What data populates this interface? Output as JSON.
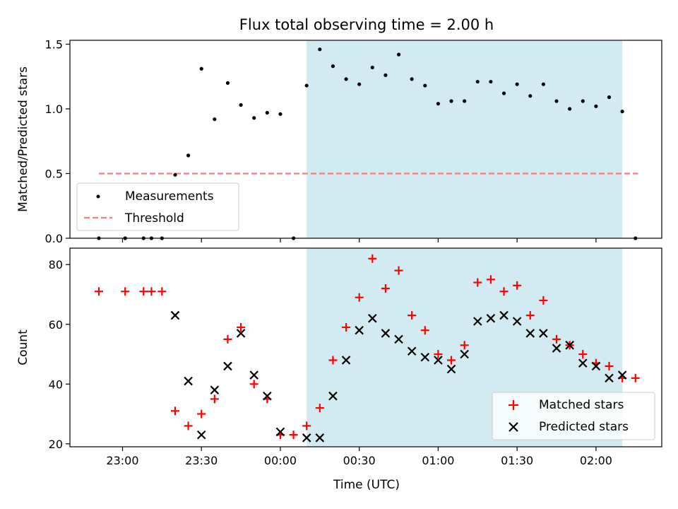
{
  "chart_data": {
    "type": "scatter",
    "title": "Flux total observing time = 2.00 h",
    "xlabel": "Time (UTC)",
    "x_tick_labels": [
      "23:00",
      "23:30",
      "00:00",
      "00:30",
      "01:00",
      "01:30",
      "02:00"
    ],
    "x_tick_minutes": [
      0,
      30,
      60,
      90,
      120,
      150,
      180
    ],
    "xlim_minutes": [
      -20,
      205
    ],
    "x_axis_origin": "23:00",
    "highlight_span_minutes": [
      70,
      190
    ],
    "highlight_color": "#add8e6",
    "top": {
      "ylabel": "Matched/Predicted stars",
      "ylim": [
        0,
        1.53
      ],
      "y_ticks": [
        "0.0",
        "0.5",
        "1.0",
        "1.5"
      ],
      "y_tick_values": [
        0,
        0.5,
        1.0,
        1.5
      ],
      "legend": {
        "placement": "lower-left",
        "measurements_label": "Measurements",
        "threshold_label": "Threshold"
      },
      "threshold": {
        "value": 0.5,
        "x_range_minutes": [
          -9,
          196
        ],
        "color": "#f08080"
      },
      "measurements": [
        [
          -9,
          0.0
        ],
        [
          1,
          0.0
        ],
        [
          8,
          0.0
        ],
        [
          11,
          0.0
        ],
        [
          15,
          0.0
        ],
        [
          20,
          0.49
        ],
        [
          25,
          0.64
        ],
        [
          30,
          1.31
        ],
        [
          35,
          0.92
        ],
        [
          40,
          1.2
        ],
        [
          45,
          1.03
        ],
        [
          50,
          0.93
        ],
        [
          55,
          0.97
        ],
        [
          60,
          0.96
        ],
        [
          65,
          0.0
        ],
        [
          70,
          1.18
        ],
        [
          75,
          1.46
        ],
        [
          80,
          1.33
        ],
        [
          85,
          1.23
        ],
        [
          90,
          1.19
        ],
        [
          95,
          1.32
        ],
        [
          100,
          1.26
        ],
        [
          105,
          1.42
        ],
        [
          110,
          1.23
        ],
        [
          115,
          1.18
        ],
        [
          120,
          1.04
        ],
        [
          125,
          1.06
        ],
        [
          130,
          1.06
        ],
        [
          135,
          1.21
        ],
        [
          140,
          1.21
        ],
        [
          145,
          1.12
        ],
        [
          150,
          1.19
        ],
        [
          155,
          1.1
        ],
        [
          160,
          1.19
        ],
        [
          165,
          1.06
        ],
        [
          170,
          1.0
        ],
        [
          175,
          1.06
        ],
        [
          180,
          1.02
        ],
        [
          185,
          1.09
        ],
        [
          190,
          0.98
        ],
        [
          195,
          0.0
        ]
      ],
      "measurement_color": "#000000"
    },
    "bottom": {
      "ylabel": "Count",
      "ylim": [
        19,
        85.5
      ],
      "y_ticks": [
        "20",
        "40",
        "60",
        "80"
      ],
      "y_tick_values": [
        20,
        40,
        60,
        80
      ],
      "legend": {
        "placement": "lower-right"
      },
      "series": [
        {
          "name": "Matched stars",
          "marker": "+",
          "color": "#ff0000",
          "points": [
            [
              -9,
              71
            ],
            [
              1,
              71
            ],
            [
              8,
              71
            ],
            [
              11,
              71
            ],
            [
              15,
              71
            ],
            [
              20,
              31
            ],
            [
              25,
              26
            ],
            [
              30,
              30
            ],
            [
              35,
              35
            ],
            [
              40,
              55
            ],
            [
              45,
              59
            ],
            [
              50,
              40
            ],
            [
              55,
              35
            ],
            [
              60,
              23
            ],
            [
              65,
              23
            ],
            [
              70,
              26
            ],
            [
              75,
              32
            ],
            [
              80,
              48
            ],
            [
              85,
              59
            ],
            [
              90,
              69
            ],
            [
              95,
              82
            ],
            [
              100,
              72
            ],
            [
              105,
              78
            ],
            [
              110,
              63
            ],
            [
              115,
              58
            ],
            [
              120,
              50
            ],
            [
              125,
              48
            ],
            [
              130,
              53
            ],
            [
              135,
              74
            ],
            [
              140,
              75
            ],
            [
              145,
              71
            ],
            [
              150,
              73
            ],
            [
              155,
              63
            ],
            [
              160,
              68
            ],
            [
              165,
              55
            ],
            [
              170,
              53
            ],
            [
              175,
              50
            ],
            [
              180,
              47
            ],
            [
              185,
              46
            ],
            [
              190,
              42
            ],
            [
              195,
              42
            ]
          ]
        },
        {
          "name": "Predicted stars",
          "marker": "x",
          "color": "#000000",
          "points": [
            [
              20,
              63
            ],
            [
              25,
              41
            ],
            [
              30,
              23
            ],
            [
              35,
              38
            ],
            [
              40,
              46
            ],
            [
              45,
              57
            ],
            [
              50,
              43
            ],
            [
              55,
              36
            ],
            [
              60,
              24
            ],
            [
              70,
              22
            ],
            [
              75,
              22
            ],
            [
              80,
              36
            ],
            [
              85,
              48
            ],
            [
              90,
              58
            ],
            [
              95,
              62
            ],
            [
              100,
              57
            ],
            [
              105,
              55
            ],
            [
              110,
              51
            ],
            [
              115,
              49
            ],
            [
              120,
              48
            ],
            [
              125,
              45
            ],
            [
              130,
              50
            ],
            [
              135,
              61
            ],
            [
              140,
              62
            ],
            [
              145,
              63
            ],
            [
              150,
              61
            ],
            [
              155,
              57
            ],
            [
              160,
              57
            ],
            [
              165,
              52
            ],
            [
              170,
              53
            ],
            [
              175,
              47
            ],
            [
              180,
              46
            ],
            [
              185,
              42
            ],
            [
              190,
              43
            ]
          ]
        }
      ]
    }
  }
}
